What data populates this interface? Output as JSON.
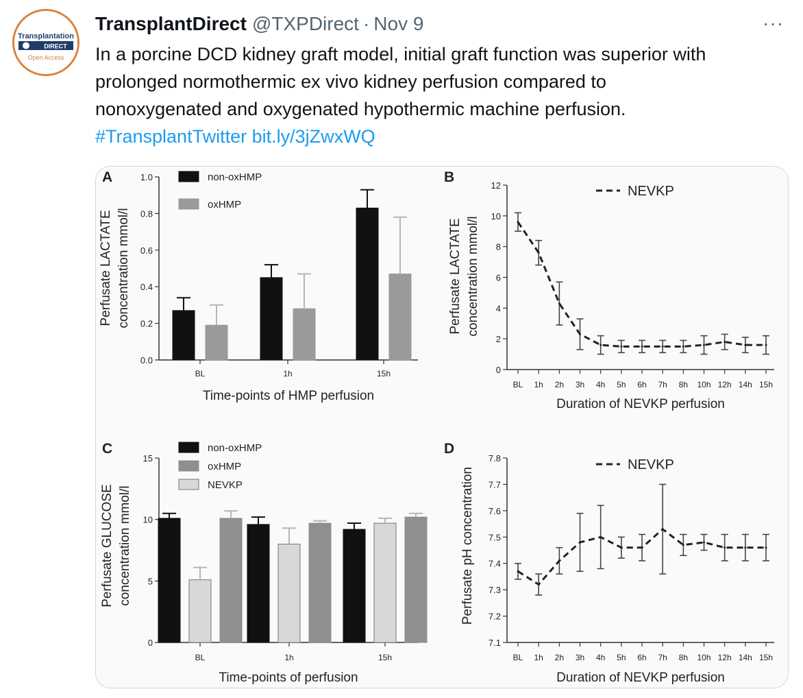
{
  "account": {
    "name": "TransplantDirect",
    "handle": "@TXPDirect",
    "separator": "·",
    "date": "Nov 9",
    "avatar": {
      "line1": "Transplantation",
      "line2": "DIRECT",
      "line3": "Open Access"
    },
    "more": "···"
  },
  "tweet": {
    "line1": "In a porcine DCD kidney graft model, initial graft function was superior with",
    "line2": "prolonged normothermic ex vivo kidney perfusion compared to",
    "line3": "nonoxygenated and oxygenated hypothermic machine perfusion.",
    "hashtag": "#TransplantTwitter",
    "link": "bit.ly/3jZwxWQ"
  },
  "colors": {
    "link": "#1d9bf0",
    "muted": "#536471",
    "avatar_ring": "#d9823a"
  },
  "chart_data": [
    {
      "panel": "A",
      "type": "bar",
      "categories": [
        "BL",
        "1h",
        "15h"
      ],
      "series": [
        {
          "name": "non-oxHMP",
          "color": "#111111",
          "values": [
            0.27,
            0.45,
            0.83
          ],
          "err": [
            0.07,
            0.07,
            0.1
          ]
        },
        {
          "name": "oxHMP",
          "color": "#9a9a9a",
          "values": [
            0.19,
            0.28,
            0.47
          ],
          "err": [
            0.11,
            0.19,
            0.31
          ]
        }
      ],
      "xlabel": "Time-points of HMP perfusion",
      "ylabel": [
        "Perfusate LACTATE",
        "concentration mmol/l"
      ],
      "ylim": [
        0,
        1.0
      ],
      "yticks": [
        "0.0",
        "0.2",
        "0.4",
        "0.6",
        "0.8",
        "1.0"
      ],
      "legend": "top-left"
    },
    {
      "panel": "B",
      "type": "line",
      "x": [
        "BL",
        "1h",
        "2h",
        "3h",
        "4h",
        "5h",
        "6h",
        "7h",
        "8h",
        "10h",
        "12h",
        "14h",
        "15h"
      ],
      "series": [
        {
          "name": "NEVKP",
          "values": [
            9.6,
            7.6,
            4.3,
            2.3,
            1.6,
            1.5,
            1.5,
            1.5,
            1.5,
            1.6,
            1.8,
            1.6,
            1.6
          ],
          "err": [
            0.6,
            0.8,
            1.4,
            1.0,
            0.6,
            0.4,
            0.4,
            0.4,
            0.4,
            0.6,
            0.5,
            0.5,
            0.6
          ]
        }
      ],
      "xlabel": "Duration of NEVKP perfusion",
      "ylabel": [
        "Perfusate LACTATE",
        "concentration mmol/l"
      ],
      "ylim": [
        0,
        12
      ],
      "yticks": [
        "0",
        "2",
        "4",
        "6",
        "8",
        "10",
        "12"
      ],
      "legend": "top-right"
    },
    {
      "panel": "C",
      "type": "bar",
      "categories": [
        "BL",
        "1h",
        "15h"
      ],
      "series": [
        {
          "name": "non-oxHMP",
          "color": "#111111",
          "values": [
            10.1,
            9.6,
            9.2
          ],
          "err": [
            0.4,
            0.6,
            0.5
          ]
        },
        {
          "name": "NEVKP",
          "color": "#d8d8d8",
          "values": [
            5.1,
            8.0,
            9.7
          ],
          "err": [
            1.0,
            1.3,
            0.4
          ]
        },
        {
          "name": "oxHMP",
          "color": "#8f8f8f",
          "values": [
            10.1,
            9.7,
            10.2
          ],
          "err": [
            0.6,
            0.2,
            0.3
          ]
        }
      ],
      "legend_order": [
        "non-oxHMP",
        "oxHMP",
        "NEVKP"
      ],
      "xlabel": "Time-points of perfusion",
      "ylabel": [
        "Perfusate GLUCOSE",
        "concentration mmol/l"
      ],
      "ylim": [
        0,
        15
      ],
      "yticks": [
        "0",
        "5",
        "10",
        "15"
      ],
      "legend": "top-left"
    },
    {
      "panel": "D",
      "type": "line",
      "x": [
        "BL",
        "1h",
        "2h",
        "3h",
        "4h",
        "5h",
        "6h",
        "7h",
        "8h",
        "10h",
        "12h",
        "14h",
        "15h"
      ],
      "series": [
        {
          "name": "NEVKP",
          "values": [
            7.37,
            7.32,
            7.41,
            7.48,
            7.5,
            7.46,
            7.46,
            7.53,
            7.47,
            7.48,
            7.46,
            7.46,
            7.46
          ],
          "err": [
            0.03,
            0.04,
            0.05,
            0.11,
            0.12,
            0.04,
            0.05,
            0.17,
            0.04,
            0.03,
            0.05,
            0.05,
            0.05
          ]
        }
      ],
      "xlabel": "Duration of NEVKP perfusion",
      "ylabel": [
        "Perfusate pH concentration"
      ],
      "ylim": [
        7.1,
        7.8
      ],
      "yticks": [
        "7.1",
        "7.2",
        "7.3",
        "7.4",
        "7.5",
        "7.6",
        "7.7",
        "7.8"
      ],
      "legend": "top-right"
    }
  ]
}
